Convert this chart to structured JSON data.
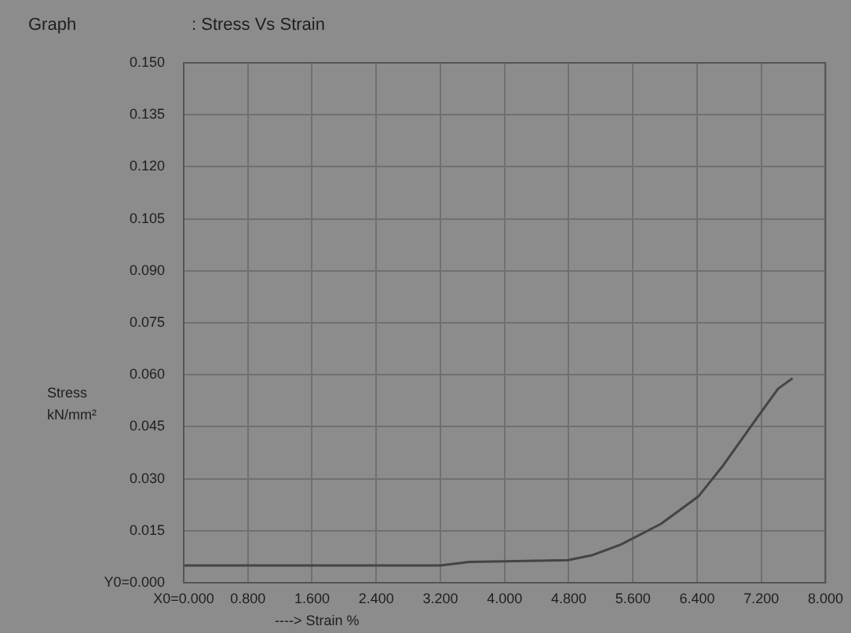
{
  "chart_data": {
    "type": "line",
    "title": "Graph",
    "subtitle": ": Stress Vs Strain",
    "xlabel": "----> Strain  %",
    "ylabel": "Stress kN/mm²",
    "x": [
      0,
      0.8,
      1.6,
      2.4,
      3.2,
      3.56,
      4.0,
      4.79,
      5.1,
      5.45,
      5.95,
      6.42,
      6.73,
      7.16,
      7.41,
      7.59
    ],
    "series": [
      {
        "color": "#444444",
        "values": [
          0.005,
          0.005,
          0.005,
          0.005,
          0.005,
          0.006,
          0.0062,
          0.0065,
          0.008,
          0.011,
          0.017,
          0.025,
          0.034,
          0.048,
          0.056,
          0.059
        ]
      }
    ],
    "xlim": [
      0,
      8
    ],
    "ylim": [
      0,
      0.15
    ],
    "xticks": [
      {
        "value": 0,
        "label": "X0=0.000"
      },
      {
        "value": 0.8,
        "label": "0.800"
      },
      {
        "value": 1.6,
        "label": "1.600"
      },
      {
        "value": 2.4,
        "label": "2.400"
      },
      {
        "value": 3.2,
        "label": "3.200"
      },
      {
        "value": 4,
        "label": "4.000"
      },
      {
        "value": 4.8,
        "label": "4.800"
      },
      {
        "value": 5.6,
        "label": "5.600"
      },
      {
        "value": 6.4,
        "label": "6.400"
      },
      {
        "value": 7.2,
        "label": "7.200"
      },
      {
        "value": 8,
        "label": "8.000"
      }
    ],
    "yticks": [
      {
        "value": 0,
        "label": "Y0=0.000"
      },
      {
        "value": 0.015,
        "label": "0.015"
      },
      {
        "value": 0.03,
        "label": "0.030"
      },
      {
        "value": 0.045,
        "label": "0.045"
      },
      {
        "value": 0.06,
        "label": "0.060"
      },
      {
        "value": 0.075,
        "label": "0.075"
      },
      {
        "value": 0.09,
        "label": "0.090"
      },
      {
        "value": 0.105,
        "label": "0.105"
      },
      {
        "value": 0.12,
        "label": "0.120"
      },
      {
        "value": 0.135,
        "label": "0.135"
      },
      {
        "value": 0.15,
        "label": "0.150"
      }
    ],
    "grid": true,
    "legend": false,
    "marker": "none",
    "line_style": "solid"
  }
}
